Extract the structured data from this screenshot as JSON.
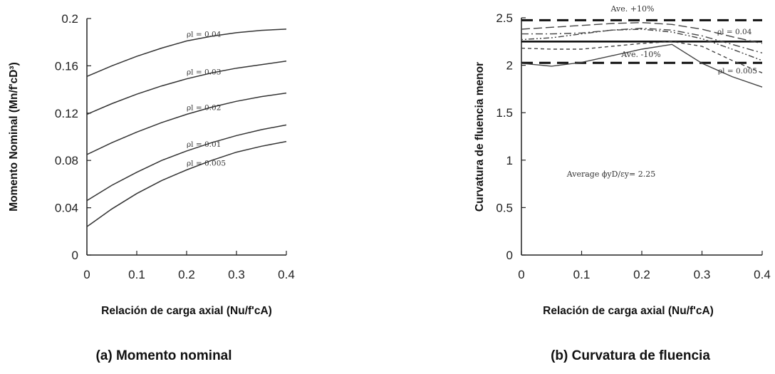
{
  "chart_data": [
    {
      "type": "line",
      "caption": "(a) Momento nominal",
      "xlabel": "Relación de carga axial (Nu/f'cA)",
      "ylabel": "Momento Nominal (Mn/f'cD³)",
      "xlim": [
        0,
        0.4
      ],
      "ylim": [
        0,
        0.2
      ],
      "xticks": [
        "0",
        "0.1",
        "0.2",
        "0.3",
        "0.4"
      ],
      "yticks": [
        "0",
        "0.04",
        "0.08",
        "0.12",
        "0.16",
        "0.2"
      ],
      "grid": false,
      "x": [
        0,
        0.05,
        0.1,
        0.15,
        0.2,
        0.25,
        0.3,
        0.35,
        0.4
      ],
      "series": [
        {
          "name": "ρl = 0.04",
          "label_x": 0.2,
          "values": [
            0.151,
            0.16,
            0.168,
            0.175,
            0.181,
            0.185,
            0.188,
            0.19,
            0.191
          ]
        },
        {
          "name": "ρl = 0.03",
          "label_x": 0.2,
          "values": [
            0.119,
            0.128,
            0.136,
            0.143,
            0.149,
            0.154,
            0.158,
            0.161,
            0.164
          ]
        },
        {
          "name": "ρl = 0.02",
          "label_x": 0.2,
          "values": [
            0.085,
            0.095,
            0.104,
            0.112,
            0.119,
            0.125,
            0.13,
            0.134,
            0.137
          ]
        },
        {
          "name": "ρl = 0.01",
          "label_x": 0.2,
          "values": [
            0.046,
            0.059,
            0.07,
            0.08,
            0.088,
            0.095,
            0.101,
            0.106,
            0.11
          ]
        },
        {
          "name": "ρl = 0.005",
          "label_x": 0.2,
          "values": [
            0.024,
            0.039,
            0.052,
            0.063,
            0.072,
            0.08,
            0.087,
            0.092,
            0.096
          ]
        }
      ]
    },
    {
      "type": "line",
      "caption": "(b) Curvatura de fluencia",
      "xlabel": "Relación de carga axial (Nu/f'cA)",
      "ylabel": "Curvatura de fluencia menor",
      "xlim": [
        0,
        0.4
      ],
      "ylim": [
        0,
        2.5
      ],
      "xticks": [
        "0",
        "0.1",
        "0.2",
        "0.3",
        "0.4"
      ],
      "yticks": [
        "0",
        "0.5",
        "1",
        "1.5",
        "2",
        "2.5"
      ],
      "grid": false,
      "annotation": "Average ϕyD/εy= 2.25",
      "reference_lines": [
        {
          "name": "Ave. +10%",
          "y": 2.475
        },
        {
          "name": "average",
          "y": 2.25
        },
        {
          "name": "Ave. -10%",
          "y": 2.025
        }
      ],
      "x": [
        0,
        0.05,
        0.1,
        0.15,
        0.2,
        0.25,
        0.3,
        0.35,
        0.4
      ],
      "series": [
        {
          "name": "ρl = 0.04",
          "values": [
            2.38,
            2.4,
            2.42,
            2.44,
            2.45,
            2.43,
            2.38,
            2.3,
            2.23
          ]
        },
        {
          "name": "",
          "values": [
            2.33,
            2.33,
            2.34,
            2.37,
            2.39,
            2.37,
            2.31,
            2.22,
            2.13
          ]
        },
        {
          "name": "",
          "values": [
            2.27,
            2.29,
            2.33,
            2.37,
            2.38,
            2.35,
            2.28,
            2.17,
            2.05
          ]
        },
        {
          "name": "",
          "values": [
            2.18,
            2.17,
            2.17,
            2.2,
            2.23,
            2.25,
            2.2,
            2.05,
            1.92
          ]
        },
        {
          "name": "ρl = 0.005",
          "values": [
            2.02,
            1.99,
            2.03,
            2.1,
            2.17,
            2.22,
            2.02,
            1.88,
            1.77
          ]
        }
      ]
    }
  ]
}
